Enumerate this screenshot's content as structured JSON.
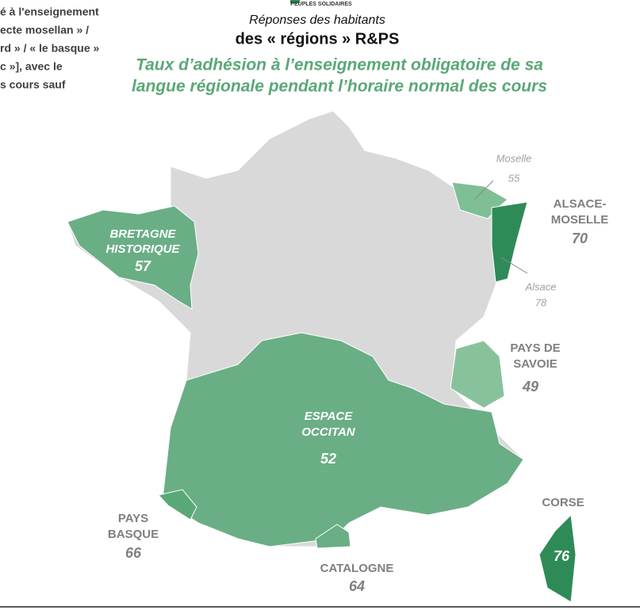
{
  "header": {
    "logo": "PEUPLES SOLIDAIRES",
    "subtitle": "Réponses des habitants",
    "title": "des « régions » R&PS",
    "heading": [
      "Taux d’adhésion à l’enseignement obligatoire de sa",
      "langue régionale pendant l’horaire normal des cours"
    ]
  },
  "side_text": [
    "é à l'enseignement",
    "ecte mosellan » /",
    "rd » / « le basque »",
    "c »], avec le",
    "s cours sauf"
  ],
  "regions": [
    {
      "name": [
        "BRETAGNE",
        "HISTORIQUE"
      ],
      "value": 57
    },
    {
      "name": [
        "Moselle"
      ],
      "value": 55
    },
    {
      "name": [
        "ALSACE-",
        "MOSELLE"
      ],
      "value": 70
    },
    {
      "name": [
        "Alsace"
      ],
      "value": 78
    },
    {
      "name": [
        "PAYS DE",
        "SAVOIE"
      ],
      "value": 49
    },
    {
      "name": [
        "ESPACE",
        "OCCITAN"
      ],
      "value": 52
    },
    {
      "name": [
        "PAYS",
        "BASQUE"
      ],
      "value": 66
    },
    {
      "name": [
        "CATALOGNE"
      ],
      "value": 64
    },
    {
      "name": [
        "CORSE"
      ],
      "value": 76
    }
  ]
}
